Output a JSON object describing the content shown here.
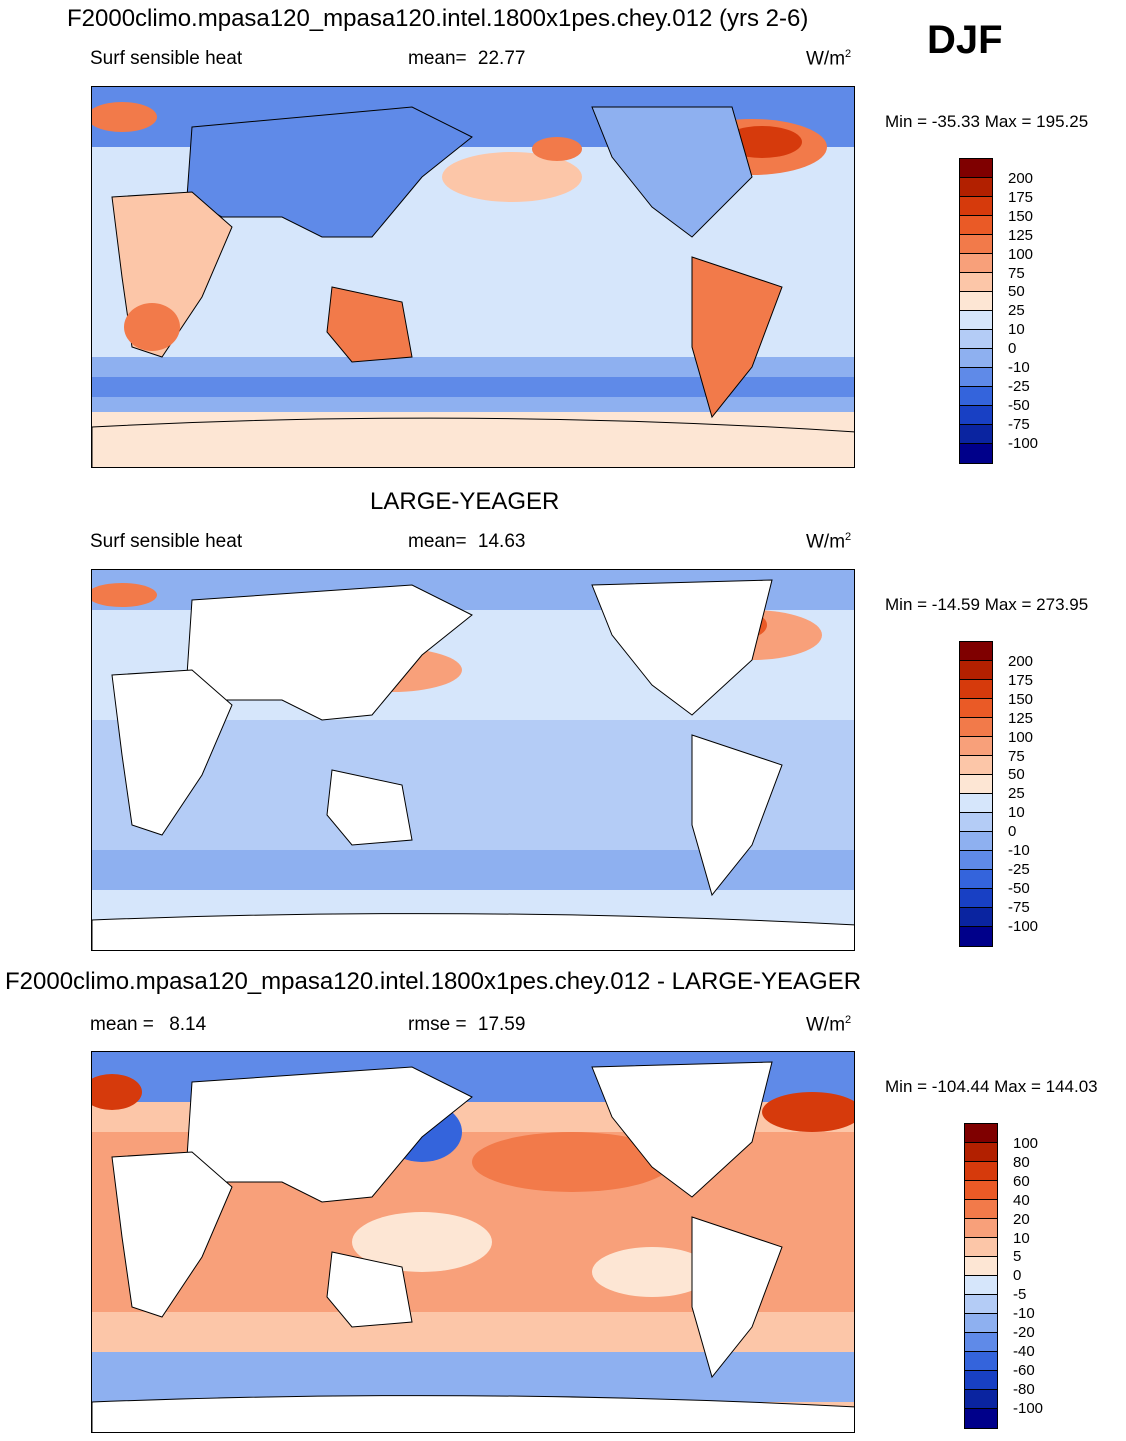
{
  "header": {
    "main_title": "F2000climo.mpasa120_mpasa120.intel.1800x1pes.chey.012 (yrs 2-6)",
    "season": "DJF"
  },
  "panel1": {
    "variable": "Surf sensible heat",
    "mean_label": "mean=",
    "mean_value": "22.77",
    "units": "W/m",
    "units_exp": "2",
    "minmax": "Min = -35.33 Max = 195.25"
  },
  "panel2": {
    "title": "LARGE-YEAGER",
    "variable": "Surf sensible heat",
    "mean_label": "mean=",
    "mean_value": "14.63",
    "units": "W/m",
    "units_exp": "2",
    "minmax": "Min = -14.59 Max = 273.95"
  },
  "panel3": {
    "title": "F2000climo.mpasa120_mpasa120.intel.1800x1pes.chey.012 - LARGE-YEAGER",
    "mean_label": "mean =",
    "mean_value": "8.14",
    "rmse_label": "rmse =",
    "rmse_value": "17.59",
    "units": "W/m",
    "units_exp": "2",
    "minmax": "Min = -104.44 Max = 144.03"
  },
  "colorbar_abs": {
    "ticks": [
      "200",
      "175",
      "150",
      "125",
      "100",
      "75",
      "50",
      "25",
      "10",
      "0",
      "-10",
      "-25",
      "-50",
      "-75",
      "-100"
    ],
    "colors": [
      "#7f0000",
      "#b22000",
      "#d63a0c",
      "#ea5a26",
      "#f27a4a",
      "#f8a07a",
      "#fcc6a8",
      "#fde6d4",
      "#d6e6fb",
      "#b4ccf6",
      "#8eb0f0",
      "#5f8ae8",
      "#3464dc",
      "#1840c4",
      "#0a24a0",
      "#00008a"
    ]
  },
  "colorbar_diff": {
    "ticks": [
      "100",
      "80",
      "60",
      "40",
      "20",
      "10",
      "5",
      "0",
      "-5",
      "-10",
      "-20",
      "-40",
      "-60",
      "-80",
      "-100"
    ],
    "colors": [
      "#7f0000",
      "#b22000",
      "#d63a0c",
      "#ea5a26",
      "#f27a4a",
      "#f8a07a",
      "#fcc6a8",
      "#fde6d4",
      "#d6e6fb",
      "#b4ccf6",
      "#8eb0f0",
      "#5f8ae8",
      "#3464dc",
      "#1840c4",
      "#0a24a0",
      "#00008a"
    ]
  }
}
